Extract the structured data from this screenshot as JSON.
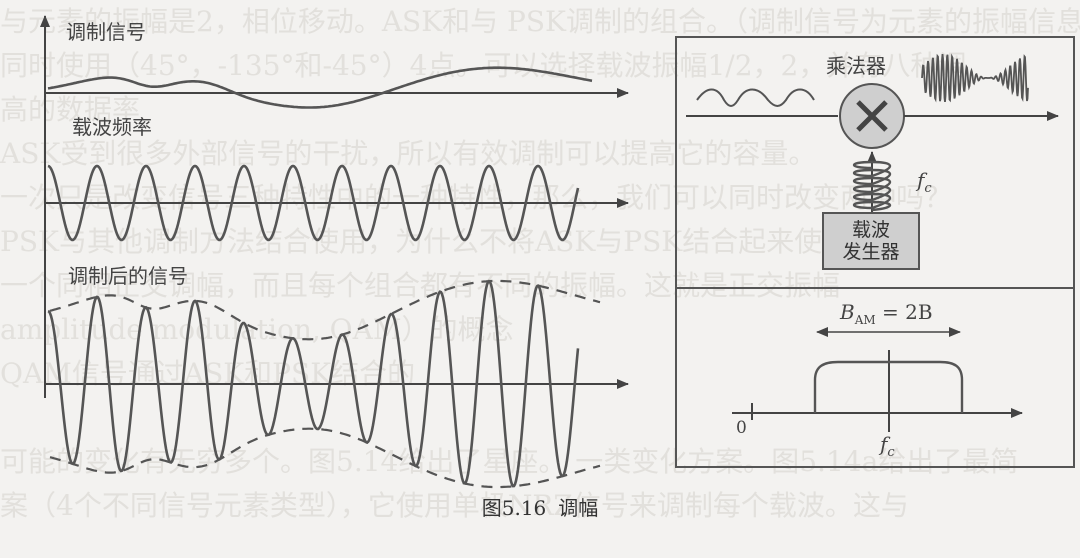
{
  "labels": {
    "modulating_signal": "调制信号",
    "carrier_frequency": "载波频率",
    "modulated_signal": "调制后的信号",
    "multiplier": "乘法器",
    "carrier_generator_line1": "载波",
    "carrier_generator_line2": "发生器",
    "fc_symbol": "f",
    "fc_subscript": "c",
    "bandwidth_prefix": "B",
    "bandwidth_subscript": "AM",
    "bandwidth_eq": "= 2B",
    "origin": "0",
    "axis_fc_symbol": "f",
    "axis_fc_subscript": "c"
  },
  "caption": {
    "number": "图5.16",
    "title": "调幅"
  },
  "background_text": [
    "与元素的振幅是2，相位移动。ASK和与 PSK调制的组合。（调制信号为元素的振幅信息，",
    "同时使用（45°，-135°和-45°）4点。可以选择载波振幅1/2，2，并有八种调",
    "                                                                  高的数据率",
    "ASK受到很多外部信号的干扰，所以有效调制可以提高它的容量。",
    "一次只是改变信号三种特性中的一种特性，那么，我们可以同时改变两种吗？",
    "PSK与其他调制方法结合使用，为什么不将ASK与PSK结合起来使用呢？",
    "一个同相正交调幅，而且每个组合都有不同的振幅。这就是正交振幅",
    "amplitude modulation, QAM）的概念",
    "  QAM信号通过ASK和PSK结合的",
    "",
    "可能的变化有无穷多个。图5.14给出了星座。 一类变化方案。图5.14a给出了最简",
    "案（4个不同信号元素类型），它使用单极NRZ信号来调制每个载波。这与"
  ]
}
